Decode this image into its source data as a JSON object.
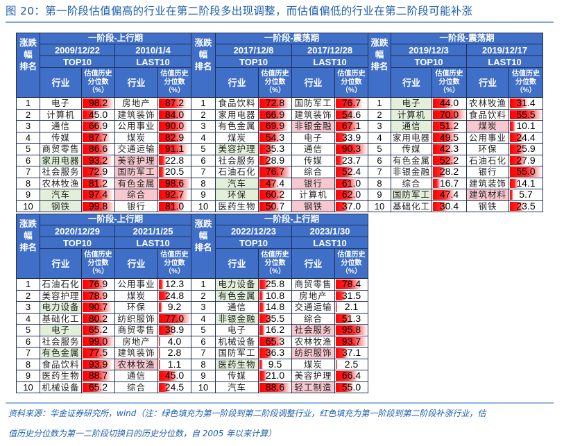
{
  "title": "图 20：第一阶段估值偏高的行业在第二阶段多出现调整，而估值偏低的行业在第二阶段可能补涨",
  "headers": {
    "rank_lines": [
      "涨跌",
      "幅",
      "排名"
    ],
    "industry": "行业",
    "value": "估值历史分位数（%）"
  },
  "colors": {
    "header_bg": "#3f6fc6",
    "green_fill": "#e3efd9",
    "red_fill": "#f7c9cf",
    "bar": "#ff0000"
  },
  "tables": [
    {
      "phase": "一阶段-上行期",
      "top": {
        "date": "2009/12/22",
        "label": "TOP10",
        "rows": [
          {
            "rank": "1",
            "industry": "电子",
            "value": 98.2,
            "fill": ""
          },
          {
            "rank": "2",
            "industry": "计算机",
            "value": 45.0,
            "fill": ""
          },
          {
            "rank": "3",
            "industry": "通信",
            "value": 66.9,
            "fill": ""
          },
          {
            "rank": "4",
            "industry": "传媒",
            "value": 87.7,
            "fill": ""
          },
          {
            "rank": "5",
            "industry": "商贸零售",
            "value": 86.6,
            "fill": ""
          },
          {
            "rank": "6",
            "industry": "家用电器",
            "value": 93.2,
            "fill": "green"
          },
          {
            "rank": "7",
            "industry": "社会服务",
            "value": 72.9,
            "fill": ""
          },
          {
            "rank": "8",
            "industry": "农林牧渔",
            "value": 81.2,
            "fill": ""
          },
          {
            "rank": "9",
            "industry": "汽车",
            "value": 97.4,
            "fill": "green"
          },
          {
            "rank": "10",
            "industry": "钢铁",
            "value": 99.8,
            "fill": "green"
          }
        ]
      },
      "last": {
        "date": "2010/1/4",
        "label": "LAST10",
        "rows": [
          {
            "industry": "房地产",
            "value": 87.2,
            "fill": ""
          },
          {
            "industry": "建筑装饰",
            "value": 84.0,
            "fill": ""
          },
          {
            "industry": "公用事业",
            "value": 90.0,
            "fill": ""
          },
          {
            "industry": "煤炭",
            "value": 82.9,
            "fill": ""
          },
          {
            "industry": "交通运输",
            "value": 91.1,
            "fill": ""
          },
          {
            "industry": "美容护理",
            "value": 22.8,
            "fill": "pink"
          },
          {
            "industry": "国防军工",
            "value": 20.5,
            "fill": "pink"
          },
          {
            "industry": "有色金属",
            "value": 98.6,
            "fill": "pink"
          },
          {
            "industry": "综合",
            "value": 92.7,
            "fill": "pink"
          },
          {
            "industry": "银行",
            "value": 81.0,
            "fill": ""
          }
        ]
      }
    },
    {
      "phase": "一阶段-震荡期",
      "top": {
        "date": "2017/12/8",
        "label": "TOP10",
        "rows": [
          {
            "rank": "1",
            "industry": "食品饮料",
            "value": 72.8,
            "fill": ""
          },
          {
            "rank": "2",
            "industry": "家用电器",
            "value": 66.9,
            "fill": ""
          },
          {
            "rank": "3",
            "industry": "有色金属",
            "value": 69.9,
            "fill": ""
          },
          {
            "rank": "4",
            "industry": "煤炭",
            "value": 54.3,
            "fill": ""
          },
          {
            "rank": "5",
            "industry": "美容护理",
            "value": 35.3,
            "fill": "green"
          },
          {
            "rank": "6",
            "industry": "社会服务",
            "value": 28.9,
            "fill": ""
          },
          {
            "rank": "7",
            "industry": "石油石化",
            "value": 76.7,
            "fill": ""
          },
          {
            "rank": "8",
            "industry": "汽车",
            "value": 47.4,
            "fill": "green"
          },
          {
            "rank": "9",
            "industry": "环保",
            "value": 60.2,
            "fill": "green"
          },
          {
            "rank": "10",
            "industry": "医药生物",
            "value": 50.7,
            "fill": ""
          }
        ]
      },
      "last": {
        "date": "2017/12/28",
        "label": "LAST10",
        "rows": [
          {
            "industry": "国防军工",
            "value": 76.7,
            "fill": ""
          },
          {
            "industry": "建筑装饰",
            "value": 54.6,
            "fill": ""
          },
          {
            "industry": "非银金融",
            "value": 67.1,
            "fill": "pink"
          },
          {
            "industry": "电子",
            "value": 33.9,
            "fill": ""
          },
          {
            "industry": "通信",
            "value": 90.3,
            "fill": ""
          },
          {
            "industry": "传媒",
            "value": 23.7,
            "fill": ""
          },
          {
            "industry": "综合",
            "value": 52.4,
            "fill": ""
          },
          {
            "industry": "银行",
            "value": 61.0,
            "fill": "pink"
          },
          {
            "industry": "计算机",
            "value": 62.0,
            "fill": ""
          },
          {
            "industry": "钢铁",
            "value": 37.0,
            "fill": "pink"
          }
        ]
      }
    },
    {
      "phase": "一阶段-震荡期",
      "top": {
        "date": "2019/12/3",
        "label": "TOP10",
        "rows": [
          {
            "rank": "1",
            "industry": "电子",
            "value": 44.0,
            "fill": "green"
          },
          {
            "rank": "2",
            "industry": "计算机",
            "value": 70.0,
            "fill": "green"
          },
          {
            "rank": "3",
            "industry": "通信",
            "value": 51.2,
            "fill": "green"
          },
          {
            "rank": "4",
            "industry": "家用电器",
            "value": 49.5,
            "fill": ""
          },
          {
            "rank": "5",
            "industry": "传媒",
            "value": 42.3,
            "fill": ""
          },
          {
            "rank": "6",
            "industry": "有色金属",
            "value": 52.2,
            "fill": ""
          },
          {
            "rank": "7",
            "industry": "非银金融",
            "value": 28.2,
            "fill": ""
          },
          {
            "rank": "8",
            "industry": "综合",
            "value": 16.7,
            "fill": ""
          },
          {
            "rank": "9",
            "industry": "国防军工",
            "value": 47.4,
            "fill": "green"
          },
          {
            "rank": "10",
            "industry": "基础化工",
            "value": 30.4,
            "fill": ""
          }
        ]
      },
      "last": {
        "date": "2019/12/17",
        "label": "LAST10",
        "rows": [
          {
            "industry": "农林牧渔",
            "value": 31.4,
            "fill": ""
          },
          {
            "industry": "食品饮料",
            "value": 55.5,
            "fill": ""
          },
          {
            "industry": "煤炭",
            "value": 10.1,
            "fill": "pink"
          },
          {
            "industry": "公用事业",
            "value": 24.4,
            "fill": ""
          },
          {
            "industry": "环保",
            "value": 25.9,
            "fill": ""
          },
          {
            "industry": "石油石化",
            "value": 27.9,
            "fill": ""
          },
          {
            "industry": "银行",
            "value": 55.0,
            "fill": ""
          },
          {
            "industry": "建筑装饰",
            "value": 14.1,
            "fill": ""
          },
          {
            "industry": "建筑材料",
            "value": 5.7,
            "fill": "pink"
          },
          {
            "industry": "钢铁",
            "value": 23.5,
            "fill": ""
          }
        ]
      }
    },
    {
      "phase": "一阶段-上行期",
      "top": {
        "date": "2020/12/29",
        "label": "TOP10",
        "rows": [
          {
            "rank": "1",
            "industry": "石油石化",
            "value": 76.9,
            "fill": ""
          },
          {
            "rank": "2",
            "industry": "美容护理",
            "value": 78.9,
            "fill": ""
          },
          {
            "rank": "3",
            "industry": "电力设备",
            "value": 90.7,
            "fill": "green"
          },
          {
            "rank": "4",
            "industry": "基础化工",
            "value": 80.2,
            "fill": ""
          },
          {
            "rank": "5",
            "industry": "电子",
            "value": 65.2,
            "fill": "green"
          },
          {
            "rank": "6",
            "industry": "社会服务",
            "value": 99.0,
            "fill": ""
          },
          {
            "rank": "7",
            "industry": "有色金属",
            "value": 77.5,
            "fill": "green"
          },
          {
            "rank": "8",
            "industry": "食品饮料",
            "value": 93.9,
            "fill": ""
          },
          {
            "rank": "9",
            "industry": "医药生物",
            "value": 88.7,
            "fill": ""
          },
          {
            "rank": "10",
            "industry": "机械设备",
            "value": 65.2,
            "fill": ""
          }
        ]
      },
      "last": {
        "date": "2021/1/25",
        "label": "LAST10",
        "rows": [
          {
            "industry": "公用事业",
            "value": 12.3,
            "fill": ""
          },
          {
            "industry": "煤炭",
            "value": 24.8,
            "fill": ""
          },
          {
            "industry": "环保",
            "value": 9.2,
            "fill": ""
          },
          {
            "industry": "纺织服饰",
            "value": 77.0,
            "fill": ""
          },
          {
            "industry": "商贸零售",
            "value": 38.9,
            "fill": ""
          },
          {
            "industry": "房地产",
            "value": 4.0,
            "fill": ""
          },
          {
            "industry": "建筑装饰",
            "value": 2.8,
            "fill": ""
          },
          {
            "industry": "农林牧渔",
            "value": 1.1,
            "fill": "pink"
          },
          {
            "industry": "通信",
            "value": 45.0,
            "fill": ""
          },
          {
            "industry": "综合",
            "value": 24.5,
            "fill": ""
          }
        ]
      }
    },
    {
      "phase": "一阶段-上行期",
      "top": {
        "date": "2022/12/23",
        "label": "TOP10",
        "rows": [
          {
            "rank": "1",
            "industry": "电力设备",
            "value": 25.8,
            "fill": "green"
          },
          {
            "rank": "2",
            "industry": "有色金属",
            "value": 10.8,
            "fill": "green"
          },
          {
            "rank": "3",
            "industry": "通信",
            "value": 14.8,
            "fill": ""
          },
          {
            "rank": "4",
            "industry": "非银金融",
            "value": 35.5,
            "fill": "green"
          },
          {
            "rank": "5",
            "industry": "电子",
            "value": 16.2,
            "fill": ""
          },
          {
            "rank": "6",
            "industry": "机械设备",
            "value": 65.3,
            "fill": ""
          },
          {
            "rank": "7",
            "industry": "国防军工",
            "value": 36.3,
            "fill": ""
          },
          {
            "rank": "8",
            "industry": "医药生物",
            "value": 9.5,
            "fill": "green"
          },
          {
            "rank": "9",
            "industry": "传媒",
            "value": 21.0,
            "fill": ""
          },
          {
            "rank": "10",
            "industry": "汽车",
            "value": 88.6,
            "fill": ""
          }
        ]
      },
      "last": {
        "date": "2023/1/30",
        "label": "LAST10",
        "rows": [
          {
            "industry": "商贸零售",
            "value": 78.4,
            "fill": ""
          },
          {
            "industry": "房地产",
            "value": 31.5,
            "fill": ""
          },
          {
            "industry": "交通运输",
            "value": 2.1,
            "fill": ""
          },
          {
            "industry": "综合",
            "value": 51.3,
            "fill": ""
          },
          {
            "industry": "社会服务",
            "value": 95.8,
            "fill": "pink"
          },
          {
            "industry": "农林牧渔",
            "value": 93.7,
            "fill": ""
          },
          {
            "industry": "纺织服饰",
            "value": 37.1,
            "fill": "pink"
          },
          {
            "industry": "煤炭",
            "value": 2.5,
            "fill": ""
          },
          {
            "industry": "美容护理",
            "value": 66.4,
            "fill": ""
          },
          {
            "industry": "轻工制造",
            "value": 55.0,
            "fill": "pink"
          }
        ]
      }
    }
  ],
  "footnote": {
    "line1": "资料来源：华金证券研究所，wind（注：绿色填充为第一阶段到第二阶段调整行业，红色填充为第一阶段到第二阶段补涨行业，估",
    "line2": "值历史分位数为第一二阶段切换日的历史分位数，自 2005 年以来计算）"
  }
}
